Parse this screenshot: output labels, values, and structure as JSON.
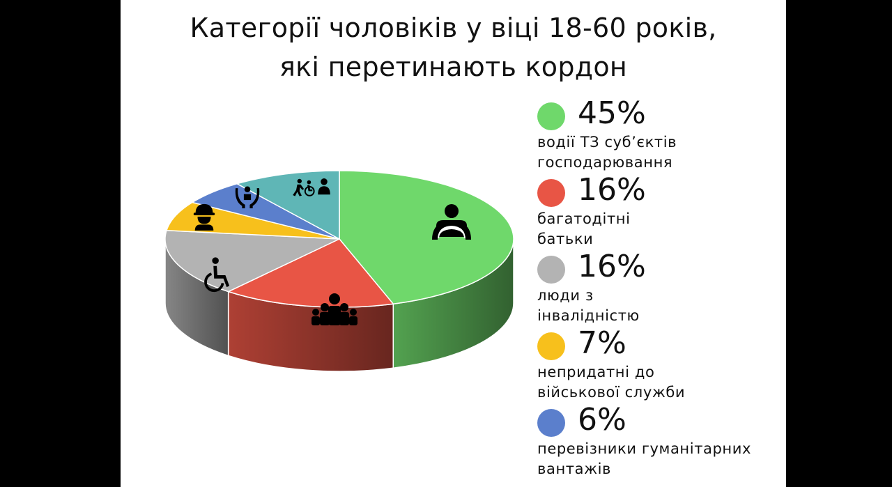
{
  "title": {
    "line1": "Категорії чоловіків у віці 18-60 років,",
    "line2": "які перетинають кордон"
  },
  "chart_data": {
    "type": "pie",
    "title": "Категорії чоловіків у віці 18-60 років, які перетинають кордон",
    "slices": [
      {
        "value": 45,
        "label": "45%",
        "name_lines": [
          "водії ТЗ суб’єктів",
          "господарювання"
        ],
        "color": "#6fd86b",
        "icon": "driver-icon"
      },
      {
        "value": 16,
        "label": "16%",
        "name_lines": [
          "багатодітні",
          "батьки"
        ],
        "color": "#e85545",
        "icon": "large-family-icon"
      },
      {
        "value": 16,
        "label": "16%",
        "name_lines": [
          "люди з",
          "інвалідністю"
        ],
        "color": "#b3b3b3",
        "icon": "wheelchair-icon"
      },
      {
        "value": 7,
        "label": "7%",
        "name_lines": [
          "непридатні до",
          "військової служби"
        ],
        "color": "#f7c01c",
        "icon": "worker-icon"
      },
      {
        "value": 6,
        "label": "6%",
        "name_lines": [
          "перевізники гуманітарних",
          "вантажів"
        ],
        "color": "#5b7fcc",
        "icon": "humanitarian-aid-icon"
      },
      {
        "value": 10,
        "label": "",
        "name_lines": [],
        "color": "#5fb6b6",
        "icon": "caregiver-icon"
      }
    ],
    "legend_position": "right"
  }
}
